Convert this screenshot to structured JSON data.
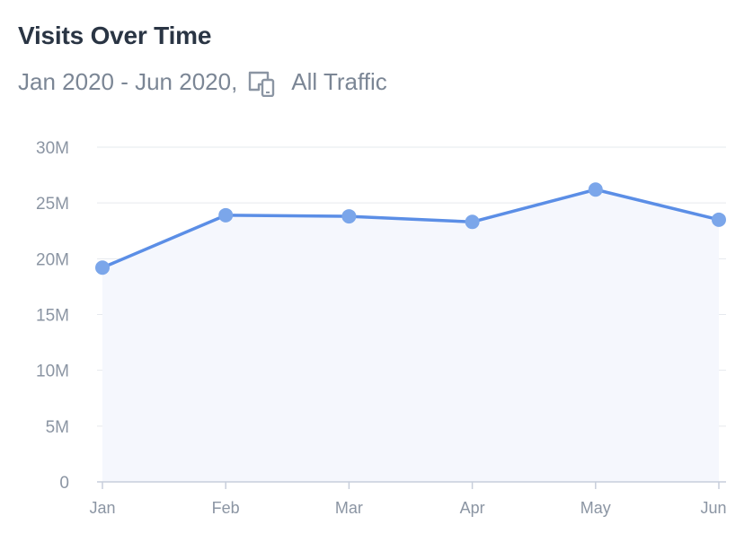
{
  "header": {
    "title": "Visits Over Time",
    "date_range": "Jan 2020 - Jun 2020,",
    "device_icon": "devices-icon",
    "traffic_label": "All Traffic"
  },
  "colors": {
    "line": "#5b8ee6",
    "point": "#7ba6ea",
    "area": "#f5f7fd",
    "grid": "#e6e9ee",
    "axis": "#c7cedb",
    "tick_text": "#8b95a3"
  },
  "chart_data": {
    "type": "line",
    "title": "Visits Over Time",
    "subtitle": "Jan 2020 - Jun 2020, All Traffic",
    "xlabel": "",
    "ylabel": "",
    "categories": [
      "Jan",
      "Feb",
      "Mar",
      "Apr",
      "May",
      "Jun"
    ],
    "series": [
      {
        "name": "Visits",
        "values": [
          19200000,
          23900000,
          23800000,
          23300000,
          26200000,
          23500000
        ]
      }
    ],
    "ylim": [
      0,
      30000000
    ],
    "yticks": [
      0,
      5000000,
      10000000,
      15000000,
      20000000,
      25000000,
      30000000
    ],
    "ytick_labels": [
      "0",
      "5M",
      "10M",
      "15M",
      "20M",
      "25M",
      "30M"
    ],
    "grid": true,
    "area_fill": true,
    "legend": "none"
  }
}
